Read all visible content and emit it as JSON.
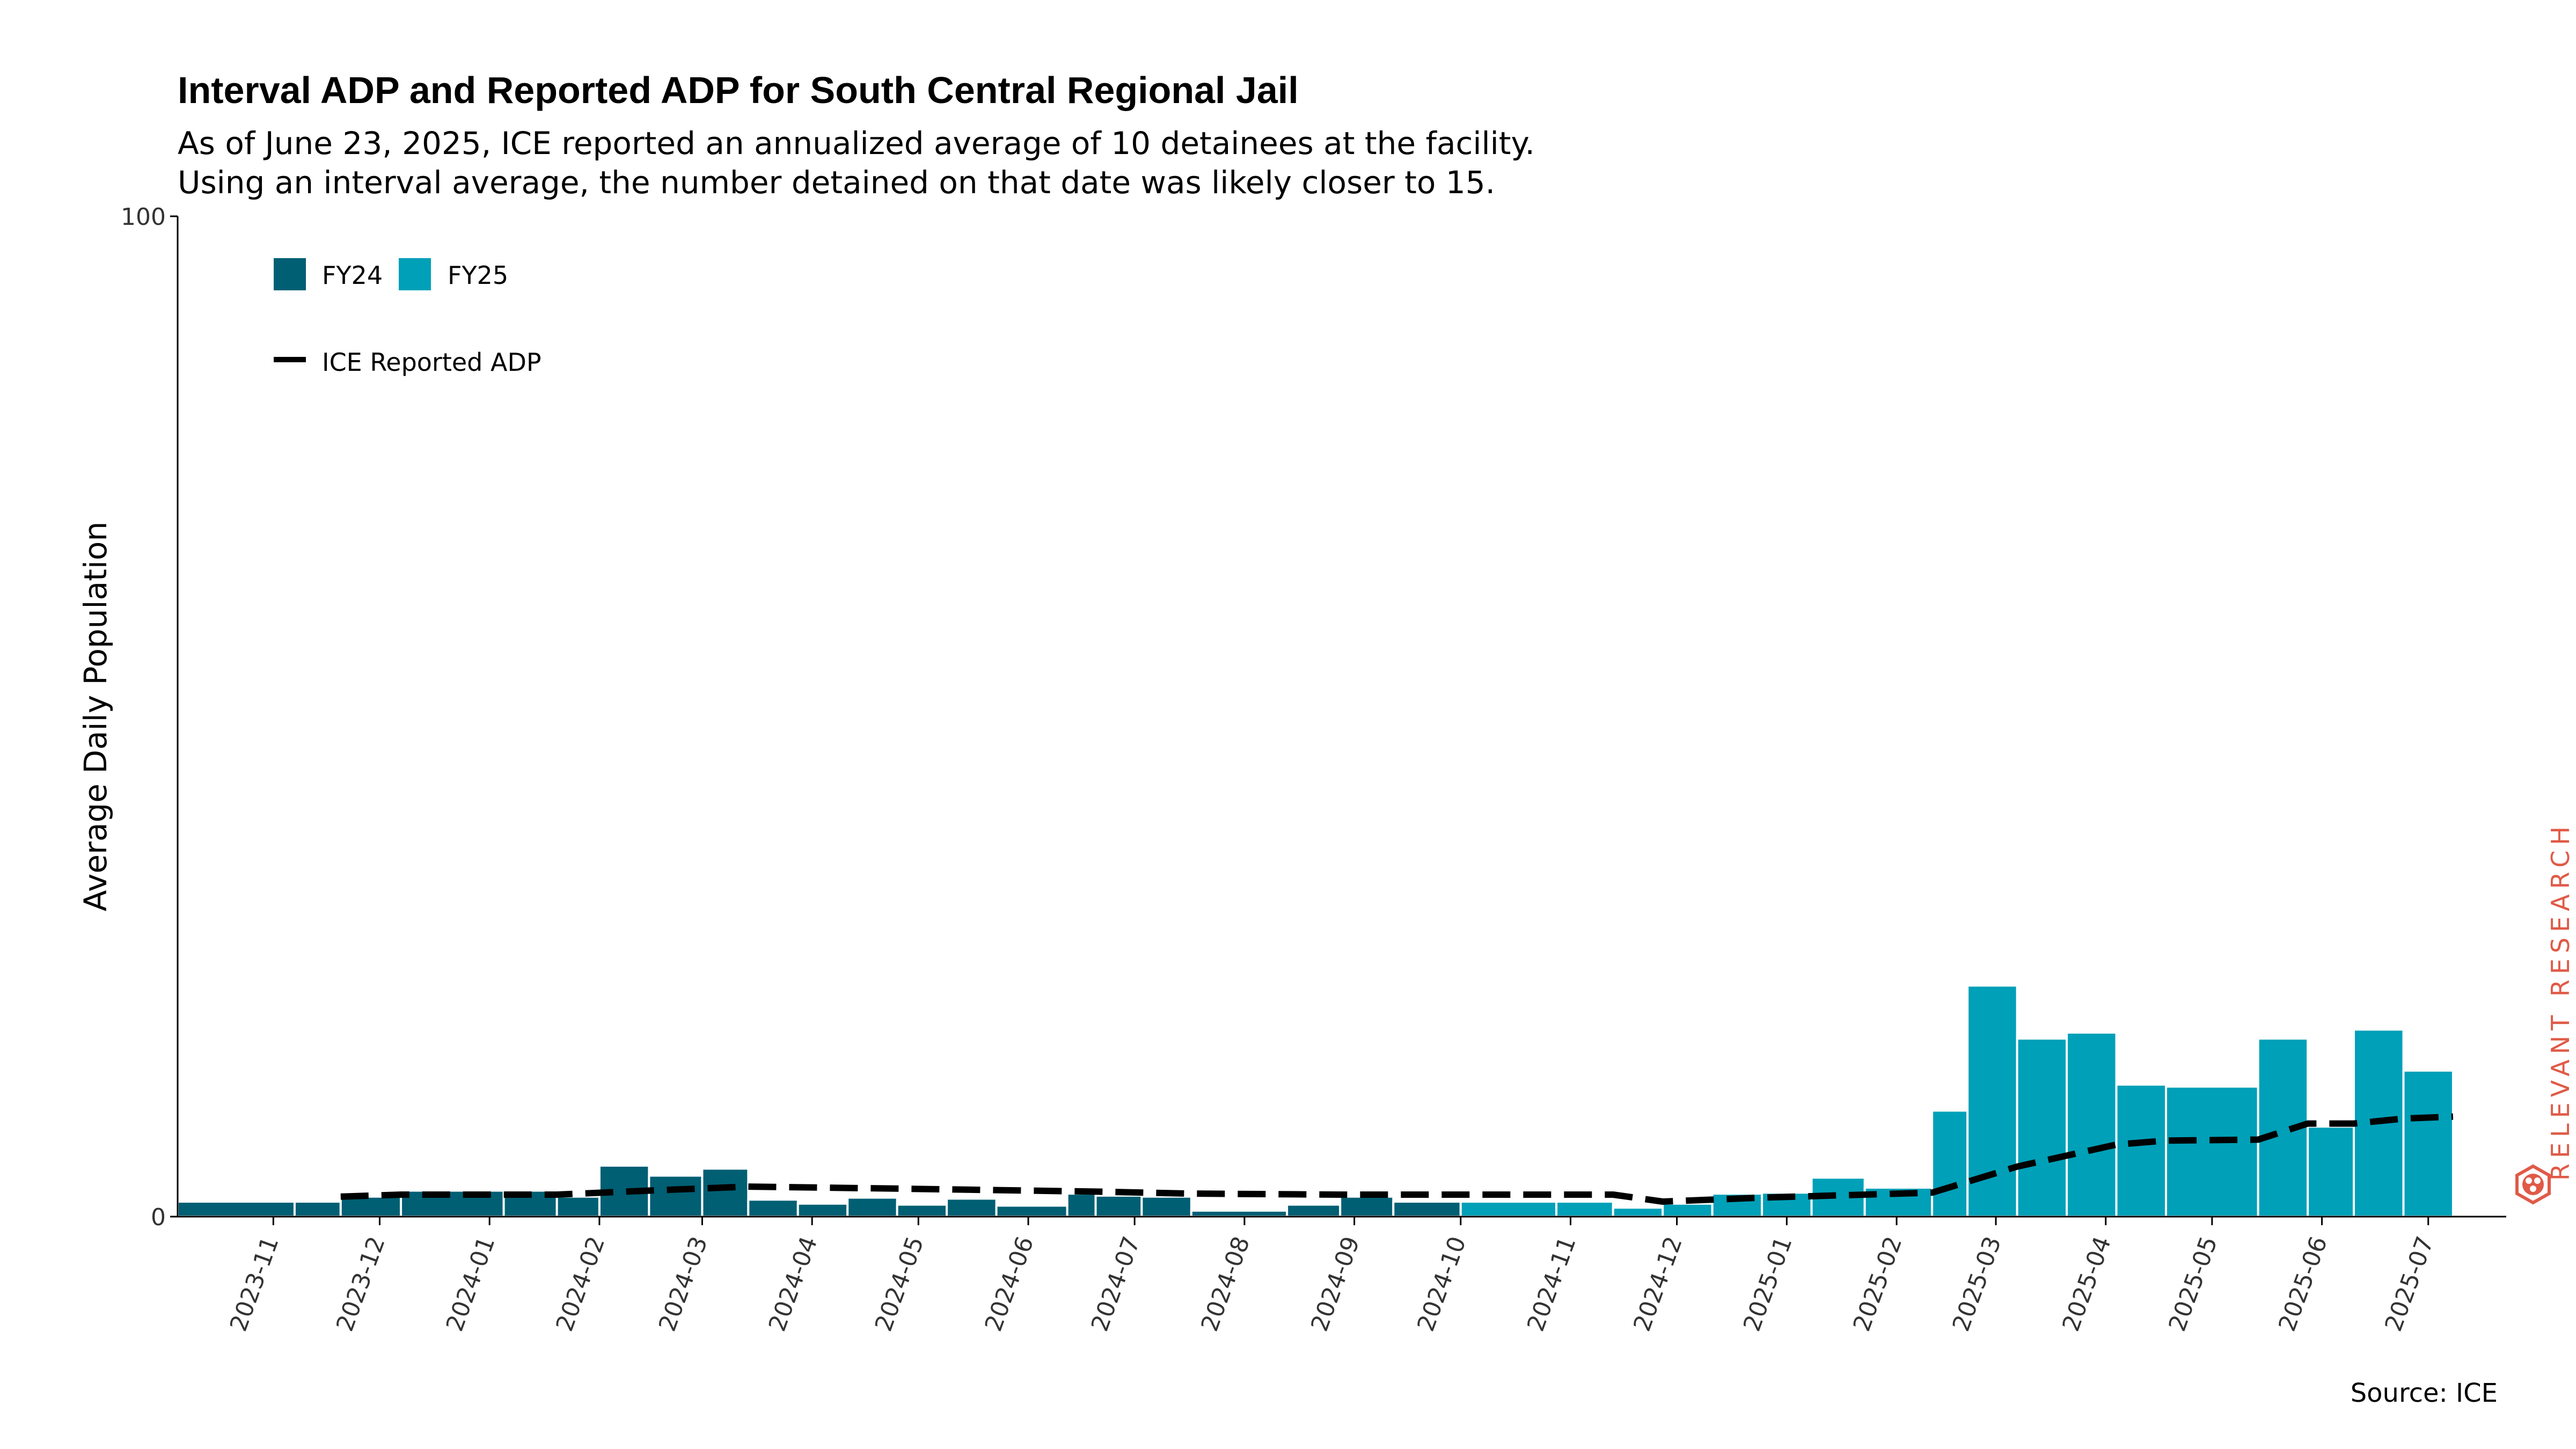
{
  "chart_data": {
    "type": "bar",
    "title": "Interval ADP and Reported ADP for South Central Regional Jail",
    "subtitle": [
      "As of June 23, 2025, ICE reported an annualized average of 10 detainees at the facility.",
      "Using an interval average, the number detained on that date was likely closer to 15."
    ],
    "ylabel": "Average Daily Population",
    "xlabel": "",
    "ylim": [
      0,
      100
    ],
    "yticks": [
      0,
      100
    ],
    "x_range": [
      "2023-10-05",
      "2025-07-23"
    ],
    "xticks": [
      "2023-11",
      "2023-12",
      "2024-01",
      "2024-02",
      "2024-03",
      "2024-04",
      "2024-05",
      "2024-06",
      "2024-07",
      "2024-08",
      "2024-09",
      "2024-10",
      "2024-11",
      "2024-12",
      "2025-01",
      "2025-02",
      "2025-03",
      "2025-04",
      "2025-05",
      "2025-06",
      "2025-07"
    ],
    "legend": {
      "placement": "top-left",
      "entries": [
        {
          "label": "FY24",
          "color": "#005f73"
        },
        {
          "label": "FY25",
          "color": "#00a0b8"
        },
        {
          "label": "ICE Reported ADP",
          "color": "#000000",
          "style": "dashed"
        }
      ]
    },
    "bars": [
      {
        "start": "2023-10-05",
        "end": "2023-11-07",
        "value": 1.5,
        "series": "FY24"
      },
      {
        "start": "2023-11-07",
        "end": "2023-11-20",
        "value": 1.5,
        "series": "FY24"
      },
      {
        "start": "2023-11-20",
        "end": "2023-12-07",
        "value": 2.0,
        "series": "FY24"
      },
      {
        "start": "2023-12-07",
        "end": "2024-01-05",
        "value": 2.6,
        "series": "FY24"
      },
      {
        "start": "2024-01-05",
        "end": "2024-01-20",
        "value": 2.6,
        "series": "FY24"
      },
      {
        "start": "2024-01-20",
        "end": "2024-02-01",
        "value": 2.0,
        "series": "FY24"
      },
      {
        "start": "2024-02-01",
        "end": "2024-02-15",
        "value": 5.1,
        "series": "FY24"
      },
      {
        "start": "2024-02-15",
        "end": "2024-03-01",
        "value": 4.1,
        "series": "FY24"
      },
      {
        "start": "2024-03-01",
        "end": "2024-03-14",
        "value": 4.8,
        "series": "FY24"
      },
      {
        "start": "2024-03-14",
        "end": "2024-03-28",
        "value": 1.7,
        "series": "FY24"
      },
      {
        "start": "2024-03-28",
        "end": "2024-04-11",
        "value": 1.3,
        "series": "FY24"
      },
      {
        "start": "2024-04-11",
        "end": "2024-04-25",
        "value": 1.9,
        "series": "FY24"
      },
      {
        "start": "2024-04-25",
        "end": "2024-05-09",
        "value": 1.2,
        "series": "FY24"
      },
      {
        "start": "2024-05-09",
        "end": "2024-05-23",
        "value": 1.8,
        "series": "FY24"
      },
      {
        "start": "2024-05-23",
        "end": "2024-06-12",
        "value": 1.1,
        "series": "FY24"
      },
      {
        "start": "2024-06-12",
        "end": "2024-06-20",
        "value": 2.3,
        "series": "FY24"
      },
      {
        "start": "2024-06-20",
        "end": "2024-07-03",
        "value": 2.1,
        "series": "FY24"
      },
      {
        "start": "2024-07-03",
        "end": "2024-07-17",
        "value": 2.0,
        "series": "FY24"
      },
      {
        "start": "2024-07-17",
        "end": "2024-08-13",
        "value": 0.6,
        "series": "FY24"
      },
      {
        "start": "2024-08-13",
        "end": "2024-08-28",
        "value": 1.2,
        "series": "FY24"
      },
      {
        "start": "2024-08-28",
        "end": "2024-09-12",
        "value": 2.0,
        "series": "FY24"
      },
      {
        "start": "2024-09-12",
        "end": "2024-10-01",
        "value": 1.5,
        "series": "FY24"
      },
      {
        "start": "2024-10-01",
        "end": "2024-10-28",
        "value": 1.5,
        "series": "FY25"
      },
      {
        "start": "2024-10-28",
        "end": "2024-11-13",
        "value": 1.5,
        "series": "FY25"
      },
      {
        "start": "2024-11-13",
        "end": "2024-11-27",
        "value": 0.9,
        "series": "FY25"
      },
      {
        "start": "2024-11-27",
        "end": "2024-12-11",
        "value": 1.3,
        "series": "FY25"
      },
      {
        "start": "2024-12-11",
        "end": "2024-12-25",
        "value": 2.3,
        "series": "FY25"
      },
      {
        "start": "2024-12-25",
        "end": "2025-01-08",
        "value": 2.4,
        "series": "FY25"
      },
      {
        "start": "2025-01-08",
        "end": "2025-01-23",
        "value": 3.9,
        "series": "FY25"
      },
      {
        "start": "2025-01-23",
        "end": "2025-02-11",
        "value": 2.9,
        "series": "FY25"
      },
      {
        "start": "2025-02-11",
        "end": "2025-02-21",
        "value": 10.6,
        "series": "FY25"
      },
      {
        "start": "2025-02-21",
        "end": "2025-03-07",
        "value": 23.1,
        "series": "FY25"
      },
      {
        "start": "2025-03-07",
        "end": "2025-03-21",
        "value": 17.8,
        "series": "FY25"
      },
      {
        "start": "2025-03-21",
        "end": "2025-04-04",
        "value": 18.4,
        "series": "FY25"
      },
      {
        "start": "2025-04-04",
        "end": "2025-04-18",
        "value": 13.2,
        "series": "FY25"
      },
      {
        "start": "2025-04-18",
        "end": "2025-05-14",
        "value": 13.0,
        "series": "FY25"
      },
      {
        "start": "2025-05-14",
        "end": "2025-05-28",
        "value": 17.8,
        "series": "FY25"
      },
      {
        "start": "2025-05-28",
        "end": "2025-06-10",
        "value": 9.0,
        "series": "FY25"
      },
      {
        "start": "2025-06-10",
        "end": "2025-06-24",
        "value": 18.7,
        "series": "FY25"
      },
      {
        "start": "2025-06-24",
        "end": "2025-07-08",
        "value": 14.6,
        "series": "FY25"
      }
    ],
    "reported_adp": [
      {
        "date": "2023-11-20",
        "value": 2.0
      },
      {
        "date": "2023-12-07",
        "value": 2.2
      },
      {
        "date": "2024-01-20",
        "value": 2.2
      },
      {
        "date": "2024-02-15",
        "value": 2.6
      },
      {
        "date": "2024-03-14",
        "value": 3.0
      },
      {
        "date": "2024-04-25",
        "value": 2.8
      },
      {
        "date": "2024-06-20",
        "value": 2.5
      },
      {
        "date": "2024-07-17",
        "value": 2.3
      },
      {
        "date": "2024-08-28",
        "value": 2.2
      },
      {
        "date": "2024-11-13",
        "value": 2.2
      },
      {
        "date": "2024-11-27",
        "value": 1.5
      },
      {
        "date": "2024-12-25",
        "value": 1.9
      },
      {
        "date": "2025-02-11",
        "value": 2.4
      },
      {
        "date": "2025-03-07",
        "value": 5.0
      },
      {
        "date": "2025-04-04",
        "value": 7.2
      },
      {
        "date": "2025-04-18",
        "value": 7.6
      },
      {
        "date": "2025-05-14",
        "value": 7.7
      },
      {
        "date": "2025-05-28",
        "value": 9.3
      },
      {
        "date": "2025-06-10",
        "value": 9.3
      },
      {
        "date": "2025-06-24",
        "value": 9.8
      },
      {
        "date": "2025-07-08",
        "value": 10.0
      }
    ],
    "source": "Source: ICE"
  },
  "logo": {
    "text": "RELEVANT RESEARCH",
    "color": "#e05a47"
  }
}
